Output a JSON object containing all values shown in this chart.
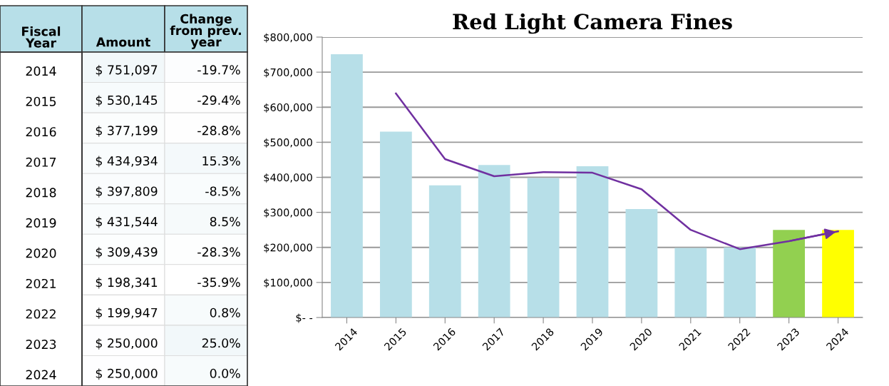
{
  "chart_data": [
    {
      "type": "heatmap",
      "ylabel": "Fiscal\nYear",
      "categories": [
        "Amount",
        "Change\nfrom prev.\nyear"
      ],
      "y_categories": [
        "2014",
        "2015",
        "2016",
        "2017",
        "2018",
        "2019",
        "2020",
        "2021",
        "2022",
        "2023",
        "2024"
      ],
      "cells": [
        [
          751097,
          -19.7
        ],
        [
          530145,
          -29.4
        ],
        [
          377199,
          -28.8
        ],
        [
          434934,
          15.3
        ],
        [
          397809,
          -8.5
        ],
        [
          431544,
          8.5
        ],
        [
          309439,
          -28.3
        ],
        [
          198341,
          -35.9
        ],
        [
          199947,
          0.8
        ],
        [
          250000,
          25.0
        ],
        [
          250000,
          0.0
        ]
      ],
      "cell_labels": [
        [
          "$ 751,097",
          "-19.7%"
        ],
        [
          "$ 530,145",
          "-29.4%"
        ],
        [
          "$ 377,199",
          "-28.8%"
        ],
        [
          "$ 434,934",
          "15.3%"
        ],
        [
          "$ 397,809",
          "-8.5%"
        ],
        [
          "$ 431,544",
          "8.5%"
        ],
        [
          "$ 309,439",
          "-28.3%"
        ],
        [
          "$ 198,341",
          "-35.9%"
        ],
        [
          "$ 199,947",
          "0.8%"
        ],
        [
          "$ 250,000",
          "25.0%"
        ],
        [
          "$ 250,000",
          "0.0%"
        ]
      ]
    },
    {
      "type": "bar",
      "title": "Red Light Camera Fines",
      "categories": [
        "2014",
        "2015",
        "2016",
        "2017",
        "2018",
        "2019",
        "2020",
        "2021",
        "2022",
        "2023",
        "2024"
      ],
      "values": [
        751097,
        530145,
        377199,
        434934,
        397809,
        431544,
        309439,
        198341,
        199947,
        250000,
        250000
      ],
      "colors": [
        "#b7dfe8",
        "#b7dfe8",
        "#b7dfe8",
        "#b7dfe8",
        "#b7dfe8",
        "#b7dfe8",
        "#b7dfe8",
        "#b7dfe8",
        "#b7dfe8",
        "#92d050",
        "#ffff00"
      ],
      "series": [
        {
          "type": "line",
          "color": "#7030a0",
          "values": [
            null,
            639000,
            452000,
            403000,
            415000,
            413000,
            366000,
            250000,
            195000,
            218000,
            246000
          ]
        }
      ],
      "ylim": [
        0,
        800000
      ],
      "yticks": [
        {
          "value": 0,
          "label": "$- -"
        },
        {
          "value": 100000,
          "label": "$100,000"
        },
        {
          "value": 200000,
          "label": "$200,000"
        },
        {
          "value": 300000,
          "label": "$300,000"
        },
        {
          "value": 400000,
          "label": "$400,000"
        },
        {
          "value": 500000,
          "label": "$500,000"
        },
        {
          "value": 600000,
          "label": "$600,000"
        },
        {
          "value": 700000,
          "label": "$700,000"
        },
        {
          "value": 800000,
          "label": "$800,000"
        }
      ],
      "grid": "y"
    }
  ]
}
